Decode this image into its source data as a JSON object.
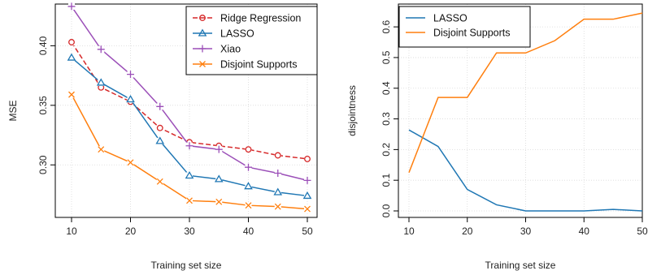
{
  "chart_data": [
    {
      "type": "line",
      "xlabel": "Training set size",
      "ylabel": "MSE",
      "x": [
        10,
        15,
        20,
        25,
        30,
        35,
        40,
        45,
        50
      ],
      "xlim": [
        10,
        50
      ],
      "ylim": [
        0.26,
        0.435
      ],
      "xticks": [
        10,
        20,
        30,
        40,
        50
      ],
      "yticks": [
        0.3,
        0.35,
        0.4
      ],
      "ytick_labels": [
        "0.30",
        "0.35",
        "0.40"
      ],
      "grid": true,
      "legend": "top-right",
      "series": [
        {
          "name": "Ridge Regression",
          "color": "#d62728",
          "marker": "circle",
          "dashed": true,
          "values": [
            0.403,
            0.365,
            0.353,
            0.331,
            0.319,
            0.316,
            0.313,
            0.308,
            0.305
          ]
        },
        {
          "name": "LASSO",
          "color": "#1f77b4",
          "marker": "triangle",
          "dashed": false,
          "values": [
            0.39,
            0.369,
            0.355,
            0.32,
            0.291,
            0.288,
            0.282,
            0.277,
            0.274
          ]
        },
        {
          "name": "Xiao",
          "color": "#9b4fb8",
          "marker": "plus",
          "dashed": false,
          "values": [
            0.433,
            0.397,
            0.376,
            0.349,
            0.316,
            0.313,
            0.298,
            0.293,
            0.287
          ]
        },
        {
          "name": "Disjoint Supports",
          "color": "#ff7f0e",
          "marker": "cross",
          "dashed": false,
          "values": [
            0.359,
            0.313,
            0.302,
            0.286,
            0.27,
            0.269,
            0.266,
            0.265,
            0.263
          ]
        }
      ]
    },
    {
      "type": "line",
      "xlabel": "Training set size",
      "ylabel": "disjointness",
      "x": [
        10,
        15,
        20,
        25,
        30,
        35,
        40,
        45,
        50
      ],
      "xlim": [
        10,
        50
      ],
      "ylim": [
        0,
        0.64
      ],
      "xticks": [
        10,
        20,
        30,
        40,
        50
      ],
      "yticks": [
        0,
        0.1,
        0.2,
        0.3,
        0.4,
        0.5,
        0.6
      ],
      "ytick_labels": [
        "0.0",
        "0.1",
        "0.2",
        "0.3",
        "0.4",
        "0.5",
        "0.6"
      ],
      "grid": true,
      "legend": "top-left",
      "series": [
        {
          "name": "LASSO",
          "color": "#1f77b4",
          "values": [
            0.264,
            0.21,
            0.07,
            0.02,
            0.0,
            0.0,
            0.0,
            0.005,
            0.0
          ]
        },
        {
          "name": "Disjoint Supports",
          "color": "#ff7f0e",
          "values": [
            0.125,
            0.37,
            0.37,
            0.515,
            0.515,
            0.555,
            0.625,
            0.625,
            0.645
          ]
        }
      ]
    }
  ]
}
